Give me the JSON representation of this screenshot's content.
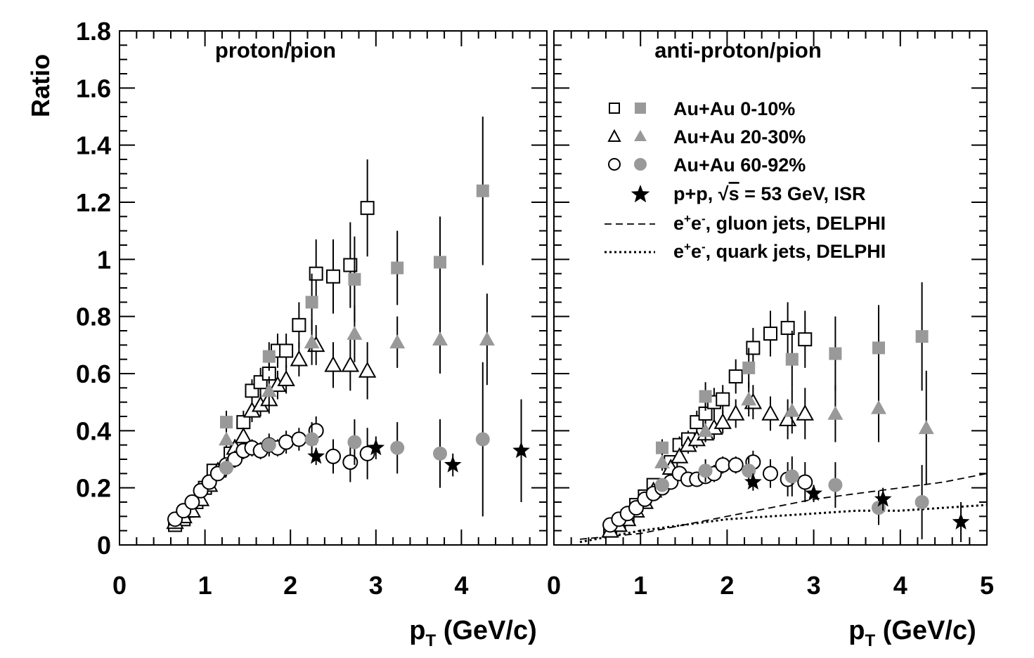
{
  "figure": {
    "ylabel": "Ratio",
    "xlabel_main": "p",
    "xlabel_sub": "T",
    "xlabel_unit": " (GeV/c)"
  },
  "legend": {
    "entries": [
      {
        "label": "Au+Au 0-10%",
        "open": "square",
        "filled": "square"
      },
      {
        "label": "Au+Au 20-30%",
        "open": "triangle",
        "filled": "triangle"
      },
      {
        "label": "Au+Au 60-92%",
        "open": "circle",
        "filled": "circle"
      },
      {
        "label_prefix": "p+p, ",
        "label_sqrt": "s",
        "label_suffix": " = 53 GeV, ISR",
        "marker": "star"
      },
      {
        "label_prefix": "e",
        "sup1": "+",
        "mid": "e",
        "sup2": "-",
        "label_suffix": ", gluon jets, DELPHI",
        "line": "dashed"
      },
      {
        "label_prefix": "e",
        "sup1": "+",
        "mid": "e",
        "sup2": "-",
        "label_suffix": ", quark jets, DELPHI",
        "line": "dotted"
      }
    ]
  },
  "colors": {
    "filled_marker": "#999999",
    "open_marker": "#000000",
    "star": "#000000"
  },
  "chart_data": [
    {
      "type": "scatter",
      "title": "proton/pion",
      "xlabel": "pT (GeV/c)",
      "ylabel": "Ratio",
      "xlim": [
        0,
        5
      ],
      "ylim": [
        0,
        1.8
      ],
      "xticks": [
        "0",
        "1",
        "2",
        "3",
        "4"
      ],
      "yticks": [
        "0",
        "0.2",
        "0.4",
        "0.6",
        "0.8",
        "1",
        "1.2",
        "1.4",
        "1.6",
        "1.8"
      ],
      "series": [
        {
          "name": "Au+Au 0-10%",
          "marker": "open-square",
          "points": [
            [
              0.65,
              0.07
            ],
            [
              0.75,
              0.09
            ],
            [
              0.8,
              0.12
            ],
            [
              0.9,
              0.15
            ],
            [
              1.0,
              0.2
            ],
            [
              1.1,
              0.26
            ],
            [
              1.3,
              0.32
            ],
            [
              1.45,
              0.43
            ],
            [
              1.55,
              0.54
            ],
            [
              1.65,
              0.57
            ],
            [
              1.75,
              0.6
            ],
            [
              1.85,
              0.68
            ],
            [
              1.95,
              0.68
            ],
            [
              2.1,
              0.77
            ],
            [
              2.3,
              0.95
            ],
            [
              2.5,
              0.94
            ],
            [
              2.7,
              0.98
            ],
            [
              2.9,
              1.18
            ]
          ],
          "err": [
            0,
            0,
            0,
            0,
            0,
            0.02,
            0.03,
            0.04,
            0.04,
            0.05,
            0.05,
            0.06,
            0.06,
            0.08,
            0.12,
            0.13,
            0.15,
            0.17
          ]
        },
        {
          "name": "Au+Au 0-10%",
          "marker": "filled-square",
          "points": [
            [
              1.25,
              0.43
            ],
            [
              1.75,
              0.66
            ],
            [
              2.25,
              0.85
            ],
            [
              2.75,
              0.93
            ],
            [
              3.25,
              0.97
            ],
            [
              3.75,
              0.99
            ],
            [
              4.25,
              1.24
            ]
          ],
          "err": [
            0.04,
            0.05,
            0.1,
            0.15,
            0.13,
            0.16,
            0.26
          ]
        },
        {
          "name": "Au+Au 20-30%",
          "marker": "open-triangle",
          "points": [
            [
              0.65,
              0.08
            ],
            [
              0.75,
              0.1
            ],
            [
              0.85,
              0.12
            ],
            [
              0.95,
              0.16
            ],
            [
              1.05,
              0.21
            ],
            [
              1.15,
              0.26
            ],
            [
              1.35,
              0.34
            ],
            [
              1.45,
              0.38
            ],
            [
              1.55,
              0.47
            ],
            [
              1.65,
              0.49
            ],
            [
              1.75,
              0.51
            ],
            [
              1.85,
              0.56
            ],
            [
              1.95,
              0.58
            ],
            [
              2.1,
              0.65
            ],
            [
              2.3,
              0.7
            ],
            [
              2.5,
              0.63
            ],
            [
              2.7,
              0.63
            ],
            [
              2.9,
              0.61
            ]
          ],
          "err": [
            0,
            0,
            0,
            0,
            0,
            0.02,
            0.03,
            0.03,
            0.04,
            0.04,
            0.05,
            0.05,
            0.05,
            0.06,
            0.07,
            0.08,
            0.09,
            0.1
          ]
        },
        {
          "name": "Au+Au 20-30%",
          "marker": "filled-triangle",
          "points": [
            [
              1.25,
              0.37
            ],
            [
              1.75,
              0.54
            ],
            [
              2.25,
              0.71
            ],
            [
              2.75,
              0.74
            ],
            [
              3.25,
              0.71
            ],
            [
              3.75,
              0.72
            ],
            [
              4.3,
              0.72
            ]
          ],
          "err": [
            0.03,
            0.05,
            0.08,
            0.1,
            0.09,
            0.12,
            0.16
          ]
        },
        {
          "name": "Au+Au 60-92%",
          "marker": "open-circle",
          "points": [
            [
              0.65,
              0.09
            ],
            [
              0.75,
              0.12
            ],
            [
              0.85,
              0.15
            ],
            [
              0.95,
              0.19
            ],
            [
              1.05,
              0.22
            ],
            [
              1.15,
              0.25
            ],
            [
              1.25,
              0.28
            ],
            [
              1.35,
              0.3
            ],
            [
              1.45,
              0.33
            ],
            [
              1.55,
              0.34
            ],
            [
              1.65,
              0.33
            ],
            [
              1.75,
              0.35
            ],
            [
              1.85,
              0.34
            ],
            [
              1.95,
              0.36
            ],
            [
              2.1,
              0.37
            ],
            [
              2.3,
              0.4
            ],
            [
              2.5,
              0.31
            ],
            [
              2.7,
              0.29
            ],
            [
              2.9,
              0.32
            ]
          ],
          "err": [
            0,
            0,
            0,
            0,
            0.02,
            0.02,
            0.02,
            0.03,
            0.03,
            0.03,
            0.03,
            0.03,
            0.03,
            0.04,
            0.04,
            0.05,
            0.06,
            0.07,
            0.09
          ]
        },
        {
          "name": "Au+Au 60-92%",
          "marker": "filled-circle",
          "points": [
            [
              1.25,
              0.27
            ],
            [
              1.75,
              0.35
            ],
            [
              2.25,
              0.37
            ],
            [
              2.75,
              0.36
            ],
            [
              3.25,
              0.34
            ],
            [
              3.75,
              0.32
            ],
            [
              4.25,
              0.37
            ]
          ],
          "err": [
            0.03,
            0.04,
            0.06,
            0.08,
            0.09,
            0.12,
            0.27
          ]
        },
        {
          "name": "p+p, √s = 53 GeV, ISR",
          "marker": "star",
          "points": [
            [
              2.3,
              0.31
            ],
            [
              3.0,
              0.34
            ],
            [
              3.9,
              0.28
            ],
            [
              4.7,
              0.33
            ]
          ],
          "err": [
            0.03,
            0.04,
            0.04,
            0.18
          ]
        }
      ]
    },
    {
      "type": "scatter",
      "title": "anti-proton/pion",
      "xlabel": "pT (GeV/c)",
      "ylabel": "Ratio",
      "xlim": [
        0,
        5
      ],
      "ylim": [
        0,
        1.8
      ],
      "xticks": [
        "0",
        "1",
        "2",
        "3",
        "4",
        "5"
      ],
      "series": [
        {
          "name": "Au+Au 0-10%",
          "marker": "open-square",
          "points": [
            [
              0.65,
              0.05
            ],
            [
              0.75,
              0.07
            ],
            [
              0.85,
              0.1
            ],
            [
              0.95,
              0.14
            ],
            [
              1.05,
              0.17
            ],
            [
              1.15,
              0.21
            ],
            [
              1.35,
              0.29
            ],
            [
              1.45,
              0.35
            ],
            [
              1.55,
              0.37
            ],
            [
              1.65,
              0.43
            ],
            [
              1.75,
              0.46
            ],
            [
              1.85,
              0.5
            ],
            [
              1.95,
              0.51
            ],
            [
              2.1,
              0.59
            ],
            [
              2.3,
              0.69
            ],
            [
              2.5,
              0.74
            ],
            [
              2.7,
              0.76
            ],
            [
              2.9,
              0.72
            ]
          ],
          "err": [
            0,
            0,
            0,
            0,
            0,
            0.02,
            0.02,
            0.03,
            0.03,
            0.04,
            0.04,
            0.05,
            0.05,
            0.06,
            0.07,
            0.08,
            0.09,
            0.1
          ]
        },
        {
          "name": "Au+Au 0-10%",
          "marker": "filled-square",
          "points": [
            [
              1.25,
              0.34
            ],
            [
              1.75,
              0.52
            ],
            [
              2.25,
              0.62
            ],
            [
              2.75,
              0.65
            ],
            [
              3.25,
              0.67
            ],
            [
              3.75,
              0.69
            ],
            [
              4.25,
              0.73
            ]
          ],
          "err": [
            0.03,
            0.05,
            0.07,
            0.1,
            0.13,
            0.15,
            0.19
          ]
        },
        {
          "name": "Au+Au 20-30%",
          "marker": "open-triangle",
          "points": [
            [
              0.65,
              0.05
            ],
            [
              0.75,
              0.07
            ],
            [
              0.85,
              0.09
            ],
            [
              0.95,
              0.12
            ],
            [
              1.05,
              0.15
            ],
            [
              1.15,
              0.19
            ],
            [
              1.35,
              0.27
            ],
            [
              1.45,
              0.31
            ],
            [
              1.55,
              0.35
            ],
            [
              1.65,
              0.37
            ],
            [
              1.75,
              0.39
            ],
            [
              1.85,
              0.41
            ],
            [
              1.95,
              0.43
            ],
            [
              2.1,
              0.46
            ],
            [
              2.3,
              0.5
            ],
            [
              2.5,
              0.46
            ],
            [
              2.7,
              0.44
            ],
            [
              2.9,
              0.46
            ]
          ],
          "err": [
            0,
            0,
            0,
            0,
            0,
            0.02,
            0.02,
            0.02,
            0.03,
            0.03,
            0.03,
            0.04,
            0.04,
            0.05,
            0.06,
            0.06,
            0.07,
            0.09
          ]
        },
        {
          "name": "Au+Au 20-30%",
          "marker": "filled-triangle",
          "points": [
            [
              1.25,
              0.29
            ],
            [
              1.75,
              0.4
            ],
            [
              2.25,
              0.51
            ],
            [
              2.75,
              0.47
            ],
            [
              3.25,
              0.46
            ],
            [
              3.75,
              0.48
            ],
            [
              4.3,
              0.41
            ]
          ],
          "err": [
            0.03,
            0.04,
            0.06,
            0.08,
            0.1,
            0.12,
            0.2
          ]
        },
        {
          "name": "Au+Au 60-92%",
          "marker": "open-circle",
          "points": [
            [
              0.65,
              0.07
            ],
            [
              0.75,
              0.09
            ],
            [
              0.85,
              0.11
            ],
            [
              0.95,
              0.13
            ],
            [
              1.05,
              0.16
            ],
            [
              1.15,
              0.18
            ],
            [
              1.25,
              0.2
            ],
            [
              1.35,
              0.22
            ],
            [
              1.45,
              0.25
            ],
            [
              1.55,
              0.23
            ],
            [
              1.65,
              0.23
            ],
            [
              1.75,
              0.24
            ],
            [
              1.85,
              0.25
            ],
            [
              1.95,
              0.28
            ],
            [
              2.1,
              0.28
            ],
            [
              2.3,
              0.29
            ],
            [
              2.5,
              0.25
            ],
            [
              2.7,
              0.23
            ],
            [
              2.9,
              0.22
            ]
          ],
          "err": [
            0,
            0,
            0,
            0,
            0.02,
            0.02,
            0.02,
            0.02,
            0.02,
            0.02,
            0.02,
            0.02,
            0.03,
            0.03,
            0.03,
            0.04,
            0.05,
            0.06,
            0.07
          ]
        },
        {
          "name": "Au+Au 60-92%",
          "marker": "filled-circle",
          "points": [
            [
              1.25,
              0.21
            ],
            [
              1.75,
              0.26
            ],
            [
              2.25,
              0.26
            ],
            [
              2.75,
              0.24
            ],
            [
              3.25,
              0.21
            ],
            [
              3.75,
              0.13
            ],
            [
              4.25,
              0.15
            ]
          ],
          "err": [
            0.02,
            0.04,
            0.05,
            0.07,
            0.08,
            0.06,
            0.13
          ]
        },
        {
          "name": "p+p, √s = 53 GeV, ISR",
          "marker": "star",
          "points": [
            [
              2.3,
              0.22
            ],
            [
              3.0,
              0.18
            ],
            [
              3.8,
              0.16
            ],
            [
              4.7,
              0.08
            ]
          ],
          "err": [
            0.03,
            0.03,
            0.04,
            0.07
          ]
        }
      ],
      "lines": [
        {
          "name": "e+e-, gluon jets, DELPHI",
          "style": "dashed",
          "points": [
            [
              0.3,
              0.02
            ],
            [
              1.0,
              0.04
            ],
            [
              1.5,
              0.07
            ],
            [
              2.0,
              0.1
            ],
            [
              2.5,
              0.13
            ],
            [
              3.0,
              0.16
            ],
            [
              3.5,
              0.18
            ],
            [
              4.0,
              0.2
            ],
            [
              4.5,
              0.22
            ],
            [
              5.0,
              0.25
            ]
          ]
        },
        {
          "name": "e+e-, quark jets, DELPHI",
          "style": "dotted",
          "points": [
            [
              0.3,
              0.01
            ],
            [
              1.0,
              0.05
            ],
            [
              1.5,
              0.07
            ],
            [
              2.0,
              0.09
            ],
            [
              2.5,
              0.1
            ],
            [
              3.0,
              0.11
            ],
            [
              3.5,
              0.12
            ],
            [
              4.0,
              0.12
            ],
            [
              4.5,
              0.13
            ],
            [
              5.0,
              0.14
            ]
          ]
        }
      ]
    }
  ]
}
